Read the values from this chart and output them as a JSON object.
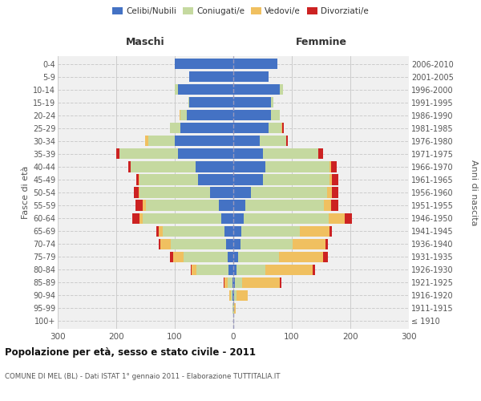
{
  "age_groups": [
    "100+",
    "95-99",
    "90-94",
    "85-89",
    "80-84",
    "75-79",
    "70-74",
    "65-69",
    "60-64",
    "55-59",
    "50-54",
    "45-49",
    "40-44",
    "35-39",
    "30-34",
    "25-29",
    "20-24",
    "15-19",
    "10-14",
    "5-9",
    "0-4"
  ],
  "birth_years": [
    "≤ 1910",
    "1911-1915",
    "1916-1920",
    "1921-1925",
    "1926-1930",
    "1931-1935",
    "1936-1940",
    "1941-1945",
    "1946-1950",
    "1951-1955",
    "1956-1960",
    "1961-1965",
    "1966-1970",
    "1971-1975",
    "1976-1980",
    "1981-1985",
    "1986-1990",
    "1991-1995",
    "1996-2000",
    "2001-2005",
    "2006-2010"
  ],
  "maschi": {
    "celibi": [
      0,
      0,
      1,
      2,
      8,
      10,
      12,
      15,
      20,
      25,
      40,
      60,
      65,
      95,
      100,
      90,
      80,
      75,
      95,
      75,
      100
    ],
    "coniugati": [
      0,
      1,
      3,
      8,
      55,
      75,
      95,
      105,
      135,
      125,
      120,
      100,
      110,
      100,
      45,
      18,
      10,
      2,
      5,
      0,
      0
    ],
    "vedovi": [
      0,
      1,
      3,
      5,
      8,
      18,
      18,
      8,
      5,
      5,
      2,
      1,
      0,
      0,
      5,
      0,
      2,
      0,
      0,
      0,
      0
    ],
    "divorziati": [
      0,
      0,
      0,
      2,
      2,
      5,
      3,
      3,
      12,
      12,
      8,
      5,
      5,
      5,
      0,
      0,
      0,
      0,
      0,
      0,
      0
    ]
  },
  "femmine": {
    "nubili": [
      0,
      0,
      1,
      3,
      5,
      8,
      12,
      14,
      18,
      20,
      30,
      50,
      55,
      50,
      45,
      60,
      65,
      65,
      80,
      60,
      75
    ],
    "coniugate": [
      0,
      1,
      4,
      12,
      50,
      70,
      90,
      100,
      145,
      135,
      130,
      115,
      110,
      95,
      45,
      22,
      15,
      3,
      5,
      0,
      0
    ],
    "vedove": [
      0,
      3,
      20,
      65,
      80,
      75,
      55,
      50,
      28,
      12,
      8,
      3,
      2,
      0,
      0,
      2,
      0,
      0,
      0,
      0,
      0
    ],
    "divorziate": [
      0,
      0,
      0,
      2,
      5,
      8,
      5,
      5,
      12,
      12,
      12,
      12,
      10,
      8,
      3,
      2,
      0,
      0,
      0,
      0,
      0
    ]
  },
  "colors": {
    "celibi": "#4472C4",
    "coniugati": "#c5d9a0",
    "vedovi": "#f0c060",
    "divorziati": "#cc2222"
  },
  "xlim": 300,
  "title": "Popolazione per età, sesso e stato civile - 2011",
  "subtitle": "COMUNE DI MEL (BL) - Dati ISTAT 1° gennaio 2011 - Elaborazione TUTTITALIA.IT",
  "ylabel": "Fasce di età",
  "ylabel2": "Anni di nascita",
  "legend_labels": [
    "Celibi/Nubili",
    "Coniugati/e",
    "Vedovi/e",
    "Divorziati/e"
  ],
  "maschi_label": "Maschi",
  "femmine_label": "Femmine"
}
